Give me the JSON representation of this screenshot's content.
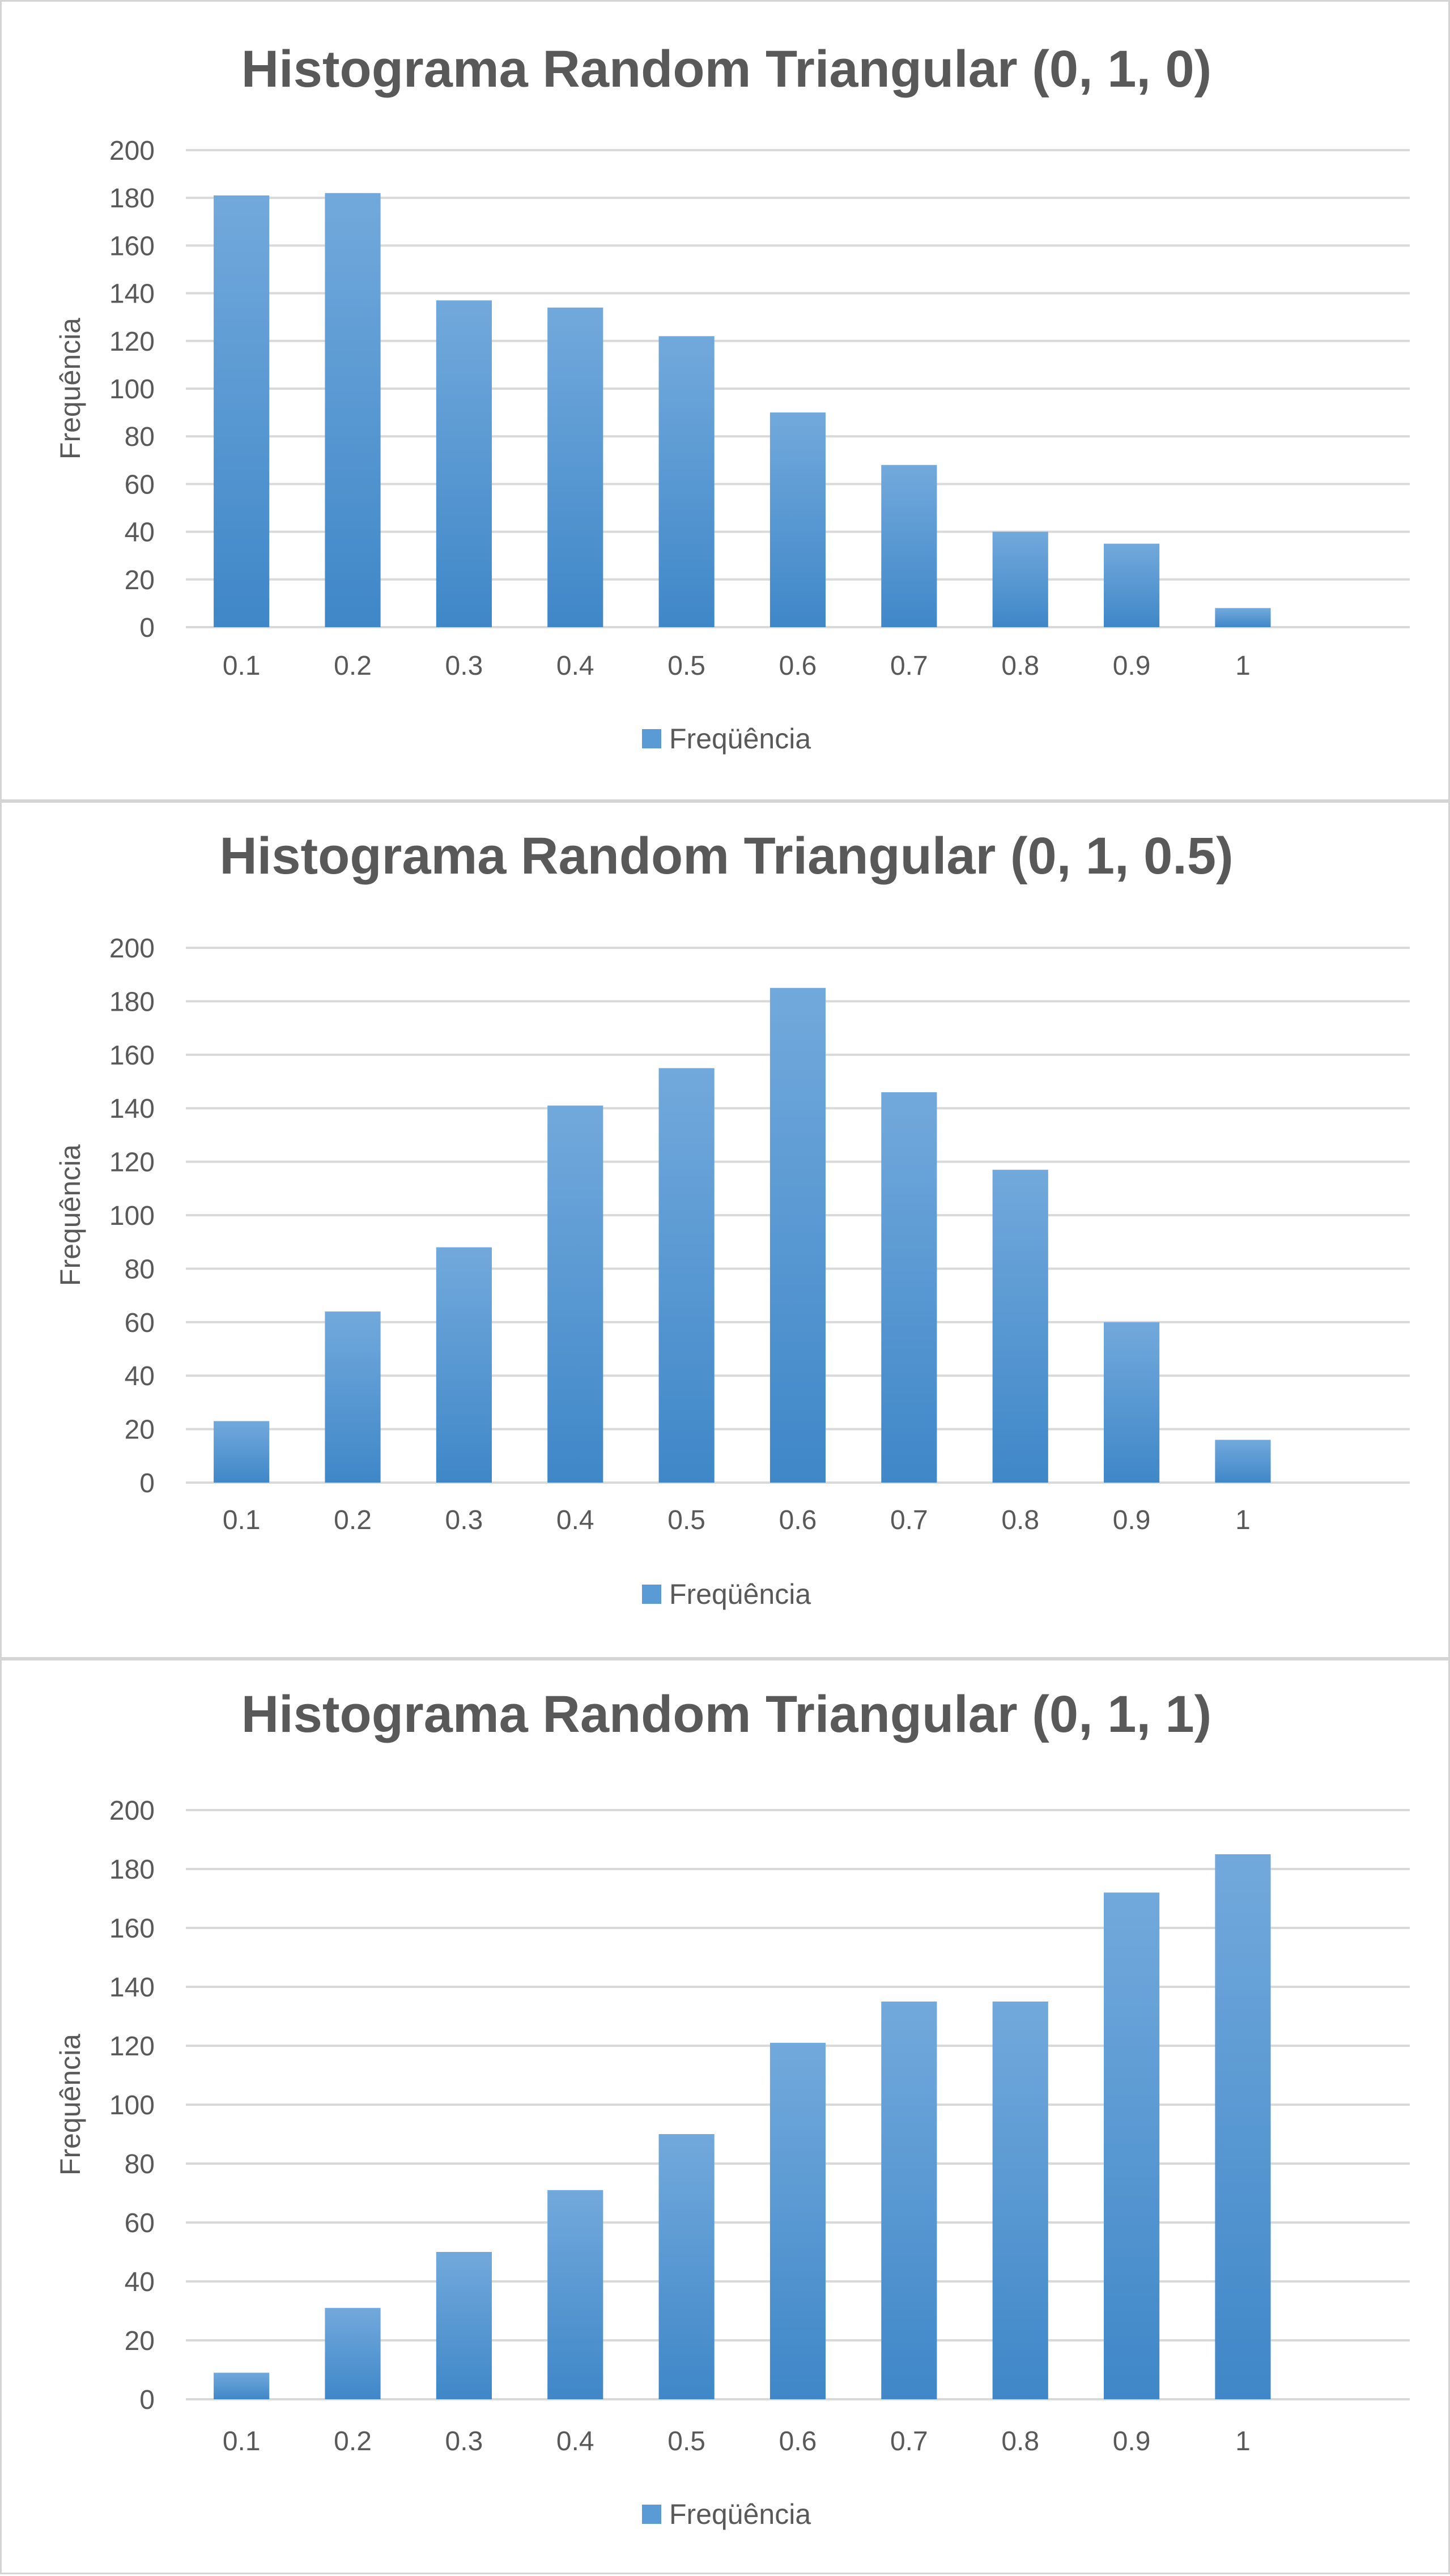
{
  "chart_data": [
    {
      "type": "bar",
      "title": "Histograma Random Triangular (0, 1, 0)",
      "xlabel": "",
      "ylabel": "Frequência",
      "categories": [
        "0.1",
        "0.2",
        "0.3",
        "0.4",
        "0.5",
        "0.6",
        "0.7",
        "0.8",
        "0.9",
        "1",
        ""
      ],
      "series": [
        {
          "name": "Freqüência",
          "values": [
            181,
            182,
            137,
            134,
            122,
            90,
            68,
            40,
            35,
            8,
            0
          ]
        }
      ],
      "yticks": [
        "0",
        "20",
        "40",
        "60",
        "80",
        "100",
        "120",
        "140",
        "160",
        "180",
        "200"
      ],
      "ylim": [
        0,
        200
      ],
      "grid": true,
      "legend_position": "bottom",
      "bar_color": "#5b9bd5"
    },
    {
      "type": "bar",
      "title": "Histograma Random Triangular (0, 1, 0.5)",
      "xlabel": "",
      "ylabel": "Frequência",
      "categories": [
        "0.1",
        "0.2",
        "0.3",
        "0.4",
        "0.5",
        "0.6",
        "0.7",
        "0.8",
        "0.9",
        "1",
        ""
      ],
      "series": [
        {
          "name": "Freqüência",
          "values": [
            23,
            64,
            88,
            141,
            155,
            185,
            146,
            117,
            60,
            16,
            0
          ]
        }
      ],
      "yticks": [
        "0",
        "20",
        "40",
        "60",
        "80",
        "100",
        "120",
        "140",
        "160",
        "180",
        "200"
      ],
      "ylim": [
        0,
        200
      ],
      "grid": true,
      "legend_position": "bottom",
      "bar_color": "#5b9bd5"
    },
    {
      "type": "bar",
      "title": "Histograma Random Triangular (0, 1, 1)",
      "xlabel": "",
      "ylabel": "Frequência",
      "categories": [
        "0.1",
        "0.2",
        "0.3",
        "0.4",
        "0.5",
        "0.6",
        "0.7",
        "0.8",
        "0.9",
        "1",
        ""
      ],
      "series": [
        {
          "name": "Freqüência",
          "values": [
            9,
            31,
            50,
            71,
            90,
            121,
            135,
            135,
            172,
            185,
            0
          ]
        }
      ],
      "yticks": [
        "0",
        "20",
        "40",
        "60",
        "80",
        "100",
        "120",
        "140",
        "160",
        "180",
        "200"
      ],
      "ylim": [
        0,
        200
      ],
      "grid": true,
      "legend_position": "bottom",
      "bar_color": "#5b9bd5"
    }
  ]
}
